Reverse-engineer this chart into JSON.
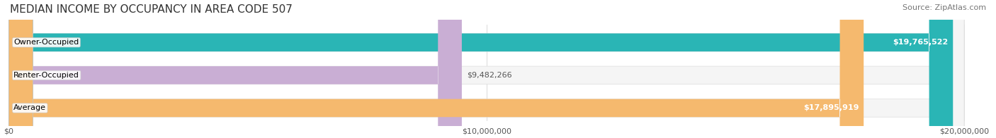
{
  "title": "MEDIAN INCOME BY OCCUPANCY IN AREA CODE 507",
  "source": "Source: ZipAtlas.com",
  "categories": [
    "Owner-Occupied",
    "Renter-Occupied",
    "Average"
  ],
  "values": [
    19765522,
    9482266,
    17895919
  ],
  "max_value": 20000000,
  "bar_colors": [
    "#2ab5b5",
    "#c9aed4",
    "#f5b96e"
  ],
  "bar_bg_color": "#f0f0f0",
  "label_colors": [
    "#ffffff",
    "#555555",
    "#ffffff"
  ],
  "value_labels": [
    "$19,765,522",
    "$9,482,266",
    "$17,895,919"
  ],
  "tick_labels": [
    "$0",
    "$10,000,000",
    "$20,000,000"
  ],
  "tick_values": [
    0,
    10000000,
    20000000
  ],
  "title_fontsize": 11,
  "source_fontsize": 8,
  "bar_label_fontsize": 8,
  "value_label_fontsize": 8,
  "tick_fontsize": 8,
  "background_color": "#ffffff",
  "figsize": [
    14.06,
    1.96
  ],
  "dpi": 100
}
